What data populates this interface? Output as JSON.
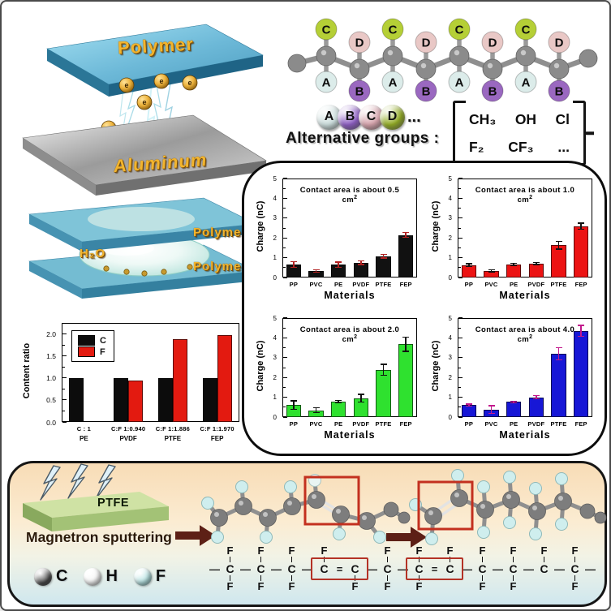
{
  "colors": {
    "polymer_blue": "#6fbcd8",
    "aluminum_gray": "#bdbdbd",
    "gold": "#f2b42e",
    "red_box": "#b43226",
    "arrow_maroon": "#5d2016",
    "ptfe_green": "#a3c276",
    "panel_bg_top": "#f8dcb6",
    "panel_bg_bottom": "#cfe7ee"
  },
  "top_left": {
    "polymer_label": "Polymer",
    "aluminum_label": "Aluminum",
    "electron_symbol": "e"
  },
  "middle_left": {
    "polymer_label_top": "Polymer",
    "polymer_label_bottom": "Polymer",
    "water_label": "H₂O"
  },
  "chain": {
    "top_pendants": [
      {
        "label": "C",
        "color": "#b5cf36"
      },
      {
        "label": "D",
        "color": "#e9c8c6"
      },
      {
        "label": "C",
        "color": "#b5cf36"
      },
      {
        "label": "D",
        "color": "#e9c8c6"
      },
      {
        "label": "C",
        "color": "#b5cf36"
      },
      {
        "label": "D",
        "color": "#e9c8c6"
      },
      {
        "label": "C",
        "color": "#b5cf36"
      },
      {
        "label": "D",
        "color": "#e9c8c6"
      }
    ],
    "bottom_pendants": [
      {
        "label": "A",
        "color": "#dcecea"
      },
      {
        "label": "B",
        "color": "#9a68c0"
      },
      {
        "label": "A",
        "color": "#dcecea"
      },
      {
        "label": "B",
        "color": "#9a68c0"
      },
      {
        "label": "A",
        "color": "#dcecea"
      },
      {
        "label": "B",
        "color": "#9a68c0"
      },
      {
        "label": "A",
        "color": "#dcecea"
      },
      {
        "label": "B",
        "color": "#9a68c0"
      }
    ]
  },
  "alternative": {
    "spheres": [
      {
        "label": "A",
        "color": "#ccdedd"
      },
      {
        "label": "B",
        "color": "#8d5ec2"
      },
      {
        "label": "C",
        "color": "#d6a3ac"
      },
      {
        "label": "D",
        "color": "#93ac25"
      }
    ],
    "ellipsis": "...",
    "caption": "Alternative groups :",
    "groups_row1": [
      "CH₃",
      "OH",
      "Cl"
    ],
    "groups_row2": [
      "F₂",
      "CF₃",
      "..."
    ]
  },
  "chart_data": [
    {
      "id": "content-ratio",
      "type": "bar",
      "ylabel": "Content ratio",
      "ylim": [
        0,
        2.25
      ],
      "yticks": [
        0,
        0.5,
        1,
        1.5,
        2
      ],
      "ytick_labels": [
        "0.0",
        "0.5",
        "1.0",
        "1.5",
        "2.0"
      ],
      "yminor": 0.25,
      "categories": [
        "C : 1",
        "C:F 1:0.940",
        "C:F 1:1.886",
        "C:F 1:1.970"
      ],
      "categories2": [
        "PE",
        "PVDF",
        "PTFE",
        "FEP"
      ],
      "series": [
        {
          "name": "C",
          "color": "#0c0c0c",
          "values": [
            1.0,
            1.0,
            1.0,
            1.0
          ]
        },
        {
          "name": "F",
          "color": "#e31a10",
          "values": [
            null,
            0.94,
            1.886,
            1.97
          ]
        }
      ],
      "legend": true,
      "legend_position": "top-left",
      "grid": false
    },
    {
      "id": "charge-0.5",
      "type": "bar",
      "title": {
        "text": "Contact area is about 0.5 cm",
        "sup": "2"
      },
      "ylabel": "Charge (nC)",
      "xlabel": "Materials",
      "ylim": [
        0,
        5
      ],
      "yticks": [
        0,
        1,
        2,
        3,
        4,
        5
      ],
      "ytick_labels": [
        "0",
        "1",
        "2",
        "3",
        "4",
        "5"
      ],
      "yminor": 0.5,
      "categories": [
        "PP",
        "PVC",
        "PE",
        "PVDF",
        "PTFE",
        "FEP"
      ],
      "series": [
        {
          "name": "Charge",
          "color": "#111111",
          "values": [
            0.65,
            0.32,
            0.65,
            0.75,
            1.08,
            2.15
          ],
          "errors": [
            0.15,
            0.06,
            0.13,
            0.1,
            0.09,
            0.12
          ],
          "error_color": "#b22222"
        }
      ],
      "grid": false
    },
    {
      "id": "charge-1.0",
      "type": "bar",
      "title": {
        "text": "Contact area is about 1.0 cm",
        "sup": "2"
      },
      "ylabel": "Charge (nC)",
      "xlabel": "Materials",
      "ylim": [
        0,
        5
      ],
      "yticks": [
        0,
        1,
        2,
        3,
        4,
        5
      ],
      "ytick_labels": [
        "0",
        "1",
        "2",
        "3",
        "4",
        "5"
      ],
      "yminor": 0.5,
      "categories": [
        "PP",
        "PVC",
        "PE",
        "PVDF",
        "PTFE",
        "FEP"
      ],
      "series": [
        {
          "name": "Charge",
          "color": "#ec1313",
          "values": [
            0.62,
            0.33,
            0.66,
            0.7,
            1.63,
            2.6
          ],
          "errors": [
            0.07,
            0.05,
            0.06,
            0.05,
            0.2,
            0.15
          ],
          "error_color": "#111111"
        }
      ],
      "grid": false
    },
    {
      "id": "charge-2.0",
      "type": "bar",
      "title": {
        "text": "Contact area is about 2.0 cm",
        "sup": "2"
      },
      "ylabel": "Charge (nC)",
      "xlabel": "Materials",
      "ylim": [
        0,
        5
      ],
      "yticks": [
        0,
        1,
        2,
        3,
        4,
        5
      ],
      "ytick_labels": [
        "0",
        "1",
        "2",
        "3",
        "4",
        "5"
      ],
      "yminor": 0.5,
      "categories": [
        "PP",
        "PVC",
        "PE",
        "PVDF",
        "PTFE",
        "FEP"
      ],
      "series": [
        {
          "name": "Charge",
          "color": "#2fe12f",
          "values": [
            0.6,
            0.34,
            0.77,
            0.95,
            2.38,
            3.68
          ],
          "errors": [
            0.22,
            0.12,
            0.06,
            0.2,
            0.28,
            0.36
          ],
          "error_color": "#111111"
        }
      ],
      "grid": false
    },
    {
      "id": "charge-4.0",
      "type": "bar",
      "title": {
        "text": "Contact area is about 4.0 cm",
        "sup": "2"
      },
      "ylabel": "Charge (nC)",
      "xlabel": "Materials",
      "ylim": [
        0,
        5
      ],
      "yticks": [
        0,
        1,
        2,
        3,
        4,
        5
      ],
      "ytick_labels": [
        "0",
        "1",
        "2",
        "3",
        "4",
        "5"
      ],
      "yminor": 0.5,
      "categories": [
        "PP",
        "PVC",
        "PE",
        "PVDF",
        "PTFE",
        "FEP"
      ],
      "series": [
        {
          "name": "Charge",
          "color": "#1717d6",
          "values": [
            0.6,
            0.38,
            0.76,
            1.0,
            3.2,
            4.35
          ],
          "errors": [
            0.05,
            0.2,
            0.04,
            0.08,
            0.3,
            0.28
          ],
          "error_color": "#c2188c"
        }
      ],
      "grid": false
    }
  ],
  "bottom_panel": {
    "slab_label": "PTFE",
    "process_label": "Magnetron sputtering",
    "atom_legend": [
      {
        "symbol": "C",
        "color": "#4e4e4e"
      },
      {
        "symbol": "H",
        "color": "#f4f4f4"
      },
      {
        "symbol": "F",
        "color": "#b4e2e2"
      }
    ],
    "formulas": {
      "left": {
        "atom": "C",
        "lead_bond": "—",
        "carbons": [
          {
            "top": "F",
            "bottom": "F",
            "boxed": false,
            "bond_after": "—"
          },
          {
            "top": "F",
            "bottom": "F",
            "boxed": false,
            "bond_after": "—"
          },
          {
            "top": "F",
            "bottom": "F",
            "boxed": false,
            "bond_after": "—"
          },
          {
            "top": "F",
            "bottom": "",
            "boxed": true,
            "bond_after": "="
          },
          {
            "top": "",
            "bottom": "F",
            "boxed": true,
            "bond_after": "—"
          },
          {
            "top": "F",
            "bottom": "F",
            "boxed": false,
            "bond_after": "—"
          }
        ]
      },
      "right": {
        "atom": "C",
        "lead_bond": "",
        "carbons": [
          {
            "top": "F",
            "bottom": "F",
            "boxed": true,
            "bond_after": "="
          },
          {
            "top": "F",
            "bottom": "",
            "boxed": true,
            "bond_after": "—"
          },
          {
            "top": "F",
            "bottom": "F",
            "boxed": false,
            "bond_after": "—"
          },
          {
            "top": "F",
            "bottom": "F",
            "boxed": false,
            "bond_after": "—"
          },
          {
            "top": "F",
            "bottom": "",
            "boxed": false,
            "bond_after": "—"
          },
          {
            "top": "F",
            "bottom": "F",
            "boxed": false,
            "bond_after": "—"
          }
        ]
      }
    }
  }
}
